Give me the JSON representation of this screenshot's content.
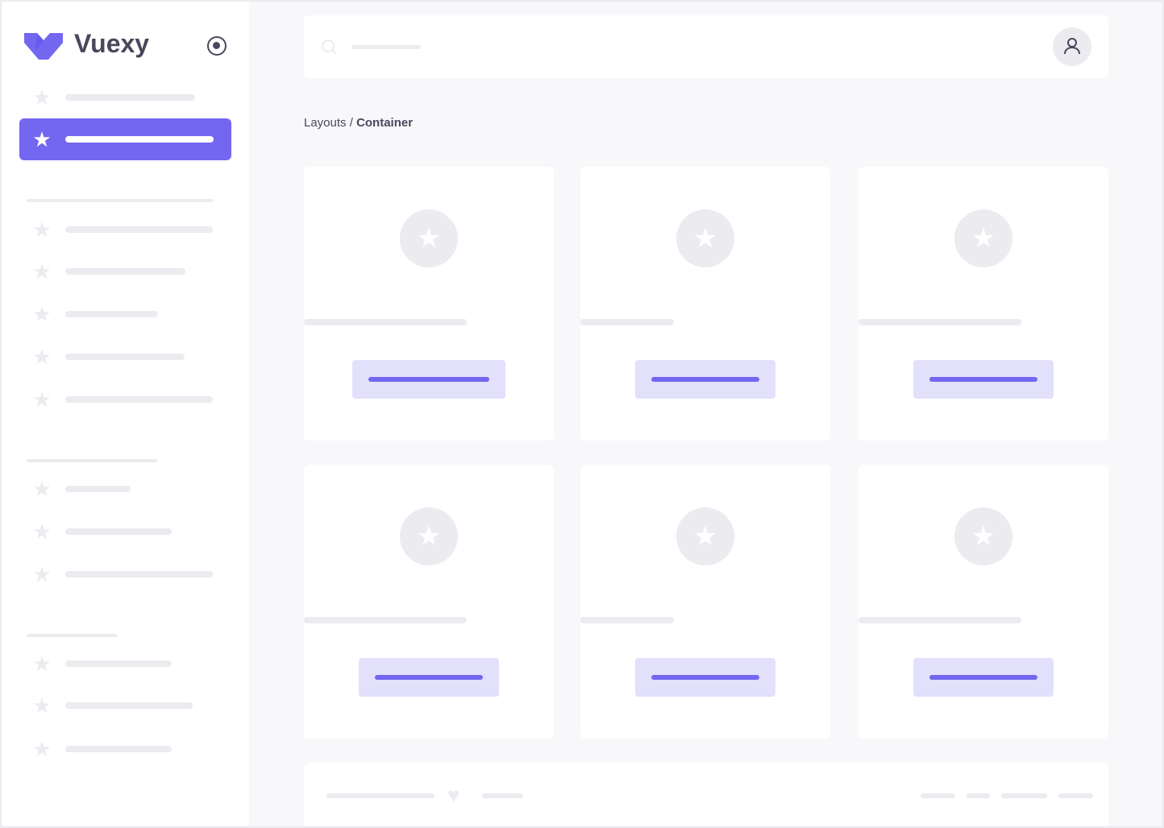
{
  "brand": {
    "name": "Vuexy",
    "color": "#7367f0"
  },
  "breadcrumb": {
    "parent": "Layouts",
    "separator": " / ",
    "current": "Container"
  },
  "icons": {
    "logo": "vuexy-logo",
    "pin": "radio-circle-icon",
    "search": "search-icon",
    "user": "user-icon",
    "nav": "star-icon",
    "card": "star-icon",
    "footer": "heart-icon"
  }
}
